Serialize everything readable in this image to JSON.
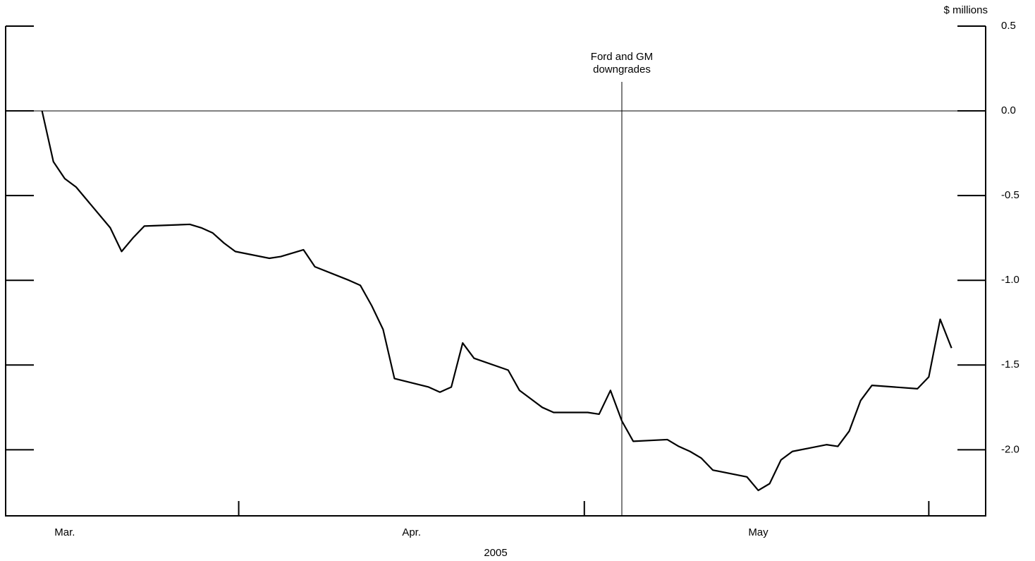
{
  "chart_data": {
    "type": "line",
    "y_label": "$ millions",
    "x_label": "2005",
    "x": [
      74,
      75,
      76,
      77,
      80,
      81,
      82,
      83,
      87,
      88,
      89,
      90,
      91,
      94,
      95,
      97,
      98,
      101,
      102,
      103,
      104,
      105,
      108,
      109,
      110,
      111,
      112,
      115,
      116,
      117,
      118,
      119,
      122,
      123,
      124,
      125,
      126,
      129,
      130,
      131,
      132,
      133,
      136,
      137,
      138,
      139,
      140,
      143,
      144,
      145,
      146,
      147,
      151,
      152,
      153,
      154
    ],
    "series": [
      {
        "color": "#000000",
        "values": [
          0,
          -0.3,
          -0.4,
          -0.45,
          -0.69,
          -0.83,
          -0.75,
          -0.68,
          -0.67,
          -0.69,
          -0.72,
          -0.78,
          -0.83,
          -0.87,
          -0.86,
          -0.82,
          -0.92,
          -1.0,
          -1.03,
          -1.15,
          -1.29,
          -1.58,
          -1.63,
          -1.66,
          -1.63,
          -1.37,
          -1.46,
          -1.53,
          -1.65,
          -1.7,
          -1.75,
          -1.78,
          -1.78,
          -1.79,
          -1.65,
          -1.83,
          -1.95,
          -1.94,
          -1.98,
          -2.01,
          -2.05,
          -2.12,
          -2.16,
          -2.24,
          -2.2,
          -2.06,
          -2.01,
          -1.97,
          -1.98,
          -1.89,
          -1.71,
          -1.62,
          -1.64,
          -1.57,
          -1.23,
          -1.4
        ]
      }
    ],
    "xlim": [
      70.8,
      157
    ],
    "xticks": [
      {
        "value": 76,
        "label": "Mar."
      },
      {
        "value": 106.5,
        "label": "Apr."
      },
      {
        "value": 137,
        "label": "May"
      }
    ],
    "xminorticks": [
      91.3,
      121.7,
      152
    ],
    "ylim": [
      -2.39,
      0.5
    ],
    "yticks": [
      0.5,
      {
        "value": 0,
        "label": "0.0"
      },
      -0.5,
      {
        "value": -1,
        "label": "-1.0"
      },
      -1.5,
      {
        "value": -2,
        "label": "-2.0"
      }
    ],
    "y_axis_side": "right",
    "grid": false,
    "zero_line": true,
    "annotations": [
      {
        "x": 125,
        "text": [
          "Ford and GM",
          "downgrades"
        ]
      }
    ]
  }
}
